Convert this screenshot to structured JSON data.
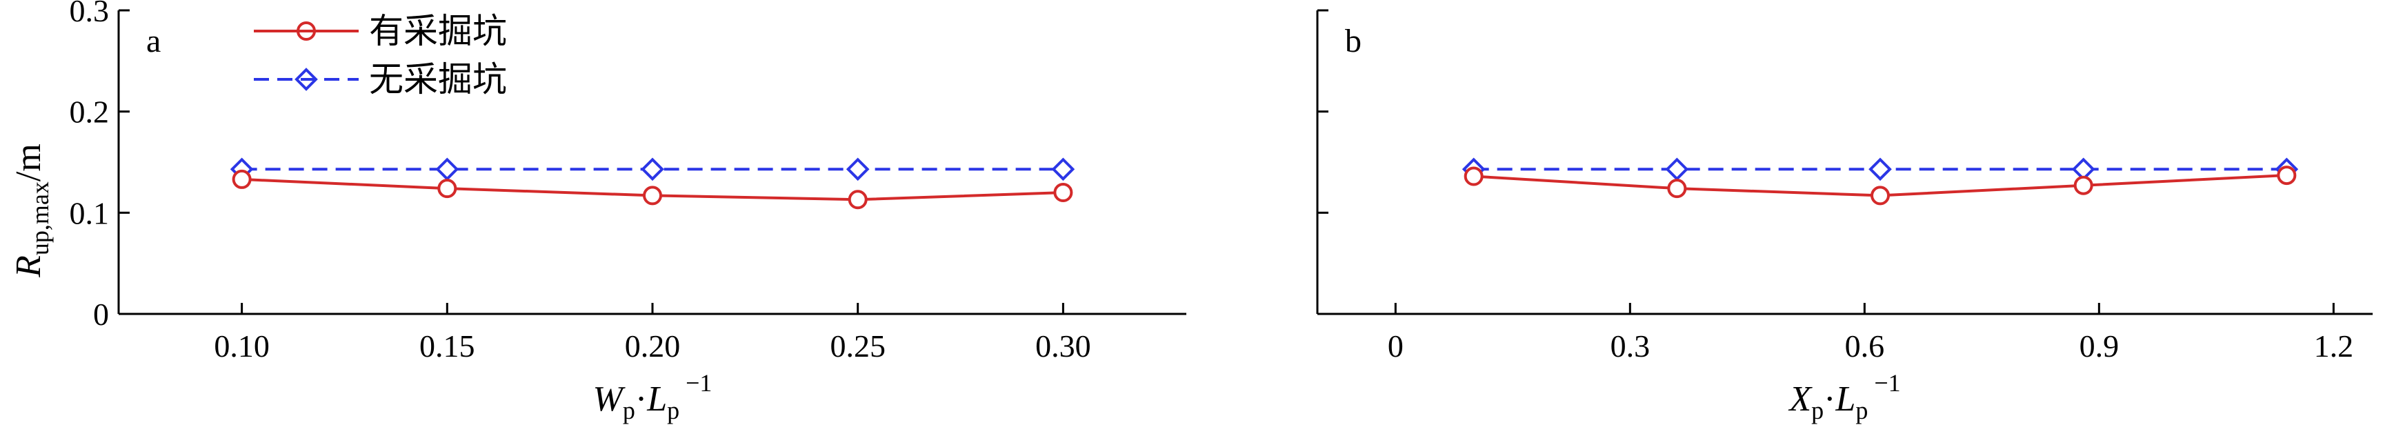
{
  "colors": {
    "with_pit": "#d42a2a",
    "without_pit": "#2b36e6",
    "axis": "#000000"
  },
  "legend": {
    "with_pit": "有采掘坑",
    "without_pit": "无采掘坑"
  },
  "ylabel": {
    "main": "R",
    "sub": "up,max",
    "unit": "/m"
  },
  "chart_data": [
    {
      "type": "line",
      "panel_label": "a",
      "xlabel": {
        "main": "W",
        "sub": "p",
        "dot": "·",
        "main2": "L",
        "sub2": "p",
        "sup": "−1"
      },
      "x": [
        0.1,
        0.15,
        0.2,
        0.25,
        0.3
      ],
      "xlim": [
        0.07,
        0.33
      ],
      "xticks": [
        0.1,
        0.15,
        0.2,
        0.25,
        0.3
      ],
      "xtick_labels": [
        "0.10",
        "0.15",
        "0.20",
        "0.25",
        "0.30"
      ],
      "ylim": [
        0,
        0.3
      ],
      "yticks": [
        0,
        0.1,
        0.2,
        0.3
      ],
      "ytick_labels": [
        "0",
        "0.1",
        "0.2",
        "0.3"
      ],
      "series": [
        {
          "name": "有采掘坑",
          "marker": "circle",
          "values": [
            0.133,
            0.124,
            0.117,
            0.113,
            0.12
          ]
        },
        {
          "name": "无采掘坑",
          "marker": "diamond",
          "dash": true,
          "values": [
            0.143,
            0.143,
            0.143,
            0.143,
            0.143
          ]
        }
      ]
    },
    {
      "type": "line",
      "panel_label": "b",
      "xlabel": {
        "main": "X",
        "sub": "p",
        "dot": "·",
        "main2": "L",
        "sub2": "p",
        "sup": "−1"
      },
      "x": [
        0.1,
        0.36,
        0.62,
        0.88,
        1.14
      ],
      "xlim": [
        -0.1,
        1.25
      ],
      "xticks": [
        0,
        0.3,
        0.6,
        0.9,
        1.2
      ],
      "xtick_labels": [
        "0",
        "0.3",
        "0.6",
        "0.9",
        "1.2"
      ],
      "ylim": [
        0,
        0.3
      ],
      "yticks": [
        0,
        0.1,
        0.2,
        0.3
      ],
      "ytick_labels": [],
      "series": [
        {
          "name": "有采掘坑",
          "marker": "circle",
          "values": [
            0.136,
            0.124,
            0.117,
            0.127,
            0.137
          ]
        },
        {
          "name": "无采掘坑",
          "marker": "diamond",
          "dash": true,
          "values": [
            0.143,
            0.143,
            0.143,
            0.143,
            0.143
          ]
        }
      ]
    }
  ]
}
